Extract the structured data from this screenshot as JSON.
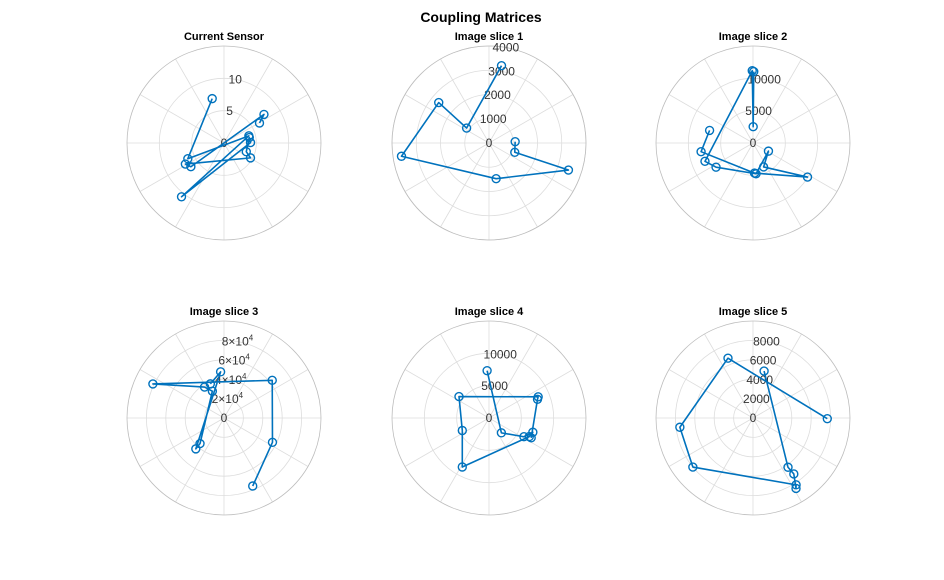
{
  "figure": {
    "title": "Coupling Matrices",
    "series_color": "#0072BD"
  },
  "chart_data": [
    {
      "type": "polar-line",
      "title": "Current Sensor",
      "rlim": [
        0,
        15
      ],
      "rticks": [
        {
          "value": 5,
          "label": "5"
        },
        {
          "value": 10,
          "label": "10"
        }
      ],
      "points": [
        {
          "theta": 29.4,
          "r": 6.3
        },
        {
          "theta": 35.6,
          "r": 7.6
        },
        {
          "theta": 215.6,
          "r": 6.3
        },
        {
          "theta": 208.6,
          "r": 6.8
        },
        {
          "theta": 330.7,
          "r": 4.7
        },
        {
          "theta": 338.6,
          "r": 3.7
        },
        {
          "theta": 12.2,
          "r": 4.0
        },
        {
          "theta": 0.9,
          "r": 4.1
        },
        {
          "theta": 231.7,
          "r": 10.6
        },
        {
          "theta": 16.1,
          "r": 4.0
        },
        {
          "theta": 203.5,
          "r": 6.1
        },
        {
          "theta": 104.9,
          "r": 7.1
        }
      ]
    },
    {
      "type": "polar-line",
      "title": "Image slice 1",
      "rlim": [
        0,
        4000
      ],
      "rticks": [
        {
          "value": 1000,
          "label": "1000"
        },
        {
          "value": 2000,
          "label": "2000"
        },
        {
          "value": 3000,
          "label": "3000"
        },
        {
          "value": 4000,
          "label": "4000"
        }
      ],
      "points": [
        {
          "theta": 80.8,
          "r": 3230
        },
        {
          "theta": 146.3,
          "r": 1110
        },
        {
          "theta": 141.2,
          "r": 2660
        },
        {
          "theta": 188.6,
          "r": 3650
        },
        {
          "theta": 281.3,
          "r": 1500
        },
        {
          "theta": 341.2,
          "r": 3460
        },
        {
          "theta": 340.2,
          "r": 1130
        },
        {
          "theta": 2.9,
          "r": 1080
        }
      ]
    },
    {
      "type": "polar-line",
      "title": "Image slice 2",
      "rlim": [
        0,
        15000
      ],
      "rticks": [
        {
          "value": 5000,
          "label": "5000"
        },
        {
          "value": 10000,
          "label": "10000"
        }
      ],
      "points": [
        {
          "theta": 89.4,
          "r": 11040
        },
        {
          "theta": 89.4,
          "r": 2520
        },
        {
          "theta": 90.6,
          "r": 11180
        },
        {
          "theta": 200.9,
          "r": 7950
        },
        {
          "theta": 213.2,
          "r": 6830
        },
        {
          "theta": 275.6,
          "r": 4780
        },
        {
          "theta": 332.3,
          "r": 2700
        },
        {
          "theta": 293.9,
          "r": 4050
        },
        {
          "theta": 328.0,
          "r": 9940
        },
        {
          "theta": 272.9,
          "r": 4660
        },
        {
          "theta": 189.5,
          "r": 8140
        },
        {
          "theta": 163.8,
          "r": 6990
        }
      ]
    },
    {
      "type": "polar-line",
      "title": "Image slice 3",
      "rlim": [
        0,
        100000
      ],
      "rticks": [
        {
          "value": 20000,
          "base": "2",
          "exp": "4"
        },
        {
          "value": 40000,
          "base": "4",
          "exp": "4"
        },
        {
          "value": 60000,
          "base": "6",
          "exp": "4"
        },
        {
          "value": 80000,
          "base": "8",
          "exp": "4"
        }
      ],
      "points": [
        {
          "theta": 111.8,
          "r": 37900
        },
        {
          "theta": 94.2,
          "r": 47700
        },
        {
          "theta": 227.6,
          "r": 43100
        },
        {
          "theta": 226.8,
          "r": 36100
        },
        {
          "theta": 113.5,
          "r": 30100
        },
        {
          "theta": 122.1,
          "r": 37700
        },
        {
          "theta": 154.4,
          "r": 81300
        },
        {
          "theta": 38.0,
          "r": 63100
        },
        {
          "theta": 333.4,
          "r": 55900
        },
        {
          "theta": 292.9,
          "r": 76100
        }
      ]
    },
    {
      "type": "polar-line",
      "title": "Image slice 4",
      "rlim": [
        0,
        15000
      ],
      "rticks": [
        {
          "value": 5000,
          "label": "5000"
        },
        {
          "value": 10000,
          "label": "10000"
        }
      ],
      "points": [
        {
          "theta": 92.3,
          "r": 7330
        },
        {
          "theta": 309.8,
          "r": 2990
        },
        {
          "theta": 331.8,
          "r": 6130
        },
        {
          "theta": 342.0,
          "r": 7130
        },
        {
          "theta": 335.2,
          "r": 6860
        },
        {
          "theta": 241.4,
          "r": 8630
        },
        {
          "theta": 205.1,
          "r": 4560
        },
        {
          "theta": 144.5,
          "r": 5700
        },
        {
          "theta": 23.3,
          "r": 8280
        },
        {
          "theta": 21.1,
          "r": 8040
        },
        {
          "theta": 334.8,
          "r": 7210
        }
      ]
    },
    {
      "type": "polar-line",
      "title": "Image slice 5",
      "rlim": [
        0,
        10000
      ],
      "rticks": [
        {
          "value": 2000,
          "label": "2000"
        },
        {
          "value": 4000,
          "label": "4000"
        },
        {
          "value": 6000,
          "label": "6000"
        },
        {
          "value": 8000,
          "label": "8000"
        }
      ],
      "points": [
        {
          "theta": 76.7,
          "r": 4970
        },
        {
          "theta": 305.4,
          "r": 6230
        },
        {
          "theta": 306.1,
          "r": 7140
        },
        {
          "theta": 301.4,
          "r": 8510
        },
        {
          "theta": 302.8,
          "r": 8200
        },
        {
          "theta": 219.2,
          "r": 8000
        },
        {
          "theta": 187.2,
          "r": 7600
        },
        {
          "theta": 112.7,
          "r": 6680
        },
        {
          "theta": 359.5,
          "r": 7660
        }
      ]
    }
  ]
}
